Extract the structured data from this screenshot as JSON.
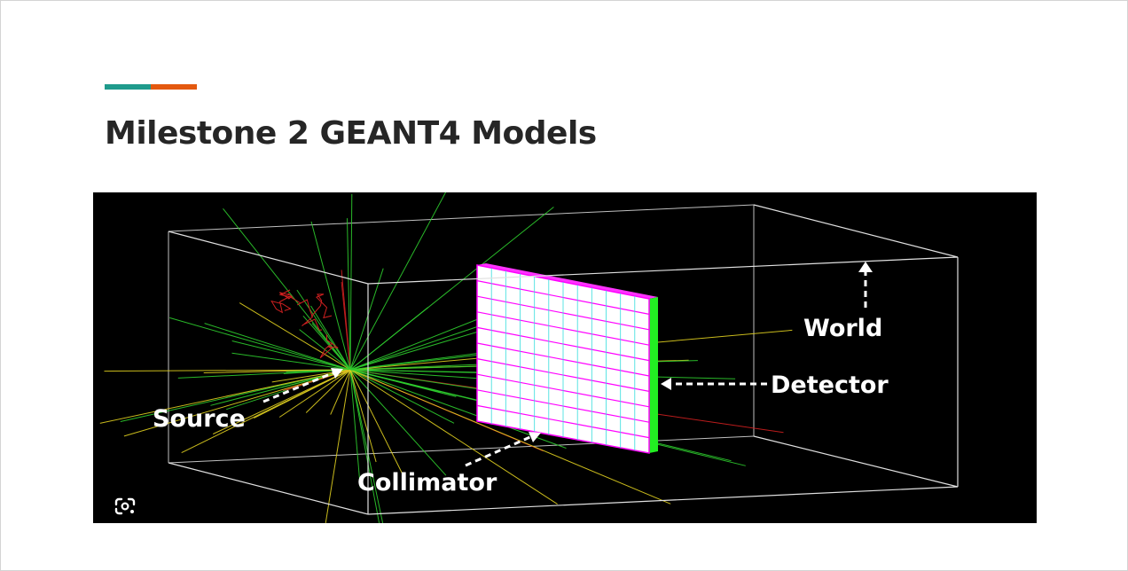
{
  "slide": {
    "title": "Milestone 2 GEANT4 Models",
    "accent_colors": [
      "#1f9b8c",
      "#e4590f"
    ]
  },
  "figure": {
    "background_color": "#000000",
    "labels": {
      "world": "World",
      "detector": "Detector",
      "source": "Source",
      "collimator": "Collimator"
    },
    "colors": {
      "box_edges": "#d8d8d8",
      "detector_face": "#ffffff",
      "detector_grid": "#ff00ff",
      "detector_side": "#00ff00",
      "track_green": "#2ecc2e",
      "track_yellow": "#e0d020",
      "track_red": "#d02020"
    }
  },
  "toolbar": {
    "lens_icon": "google-lens-icon"
  }
}
